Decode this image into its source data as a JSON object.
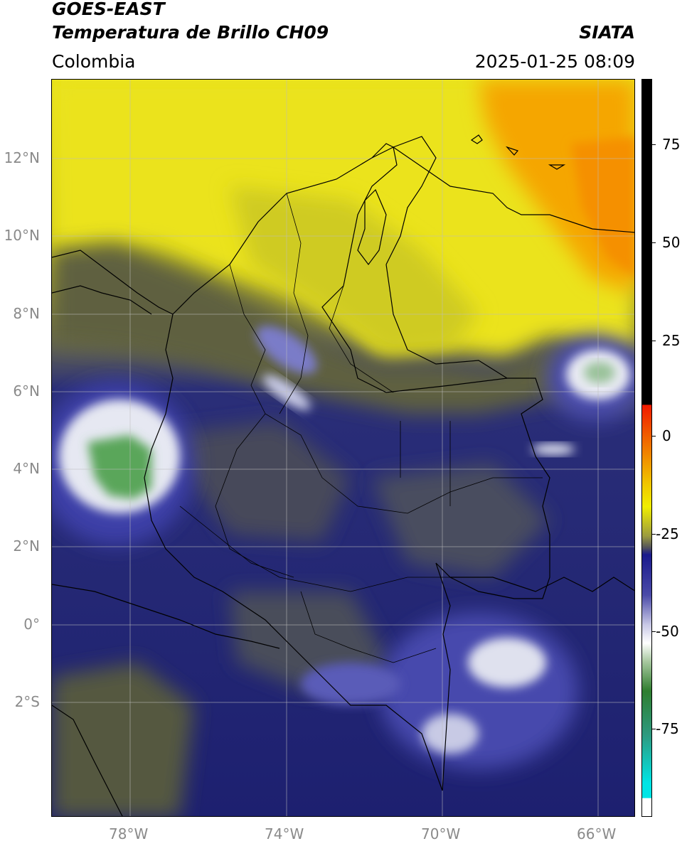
{
  "header": {
    "satellite": "GOES-EAST",
    "product": "Temperatura de Brillo CH09",
    "region": "Colombia",
    "agency": "SIATA",
    "timestamp": "2025-01-25 08:09"
  },
  "map": {
    "lon_ticks": [
      "78°W",
      "74°W",
      "70°W",
      "66°W"
    ],
    "lat_ticks": [
      "12°N",
      "10°N",
      "8°N",
      "6°N",
      "4°N",
      "2°N",
      "0°",
      "2°S"
    ],
    "colors": {
      "warm_yellow": "#e8e21a",
      "orange": "#f5a300",
      "dark_olive": "#555a3e",
      "navy": "#1c1f7a",
      "white_cloud": "#eef0f6",
      "cold_green": "#5aa45a"
    }
  },
  "colorbar": {
    "labels": [
      "75",
      "50",
      "25",
      "0",
      "-25",
      "-50",
      "-75"
    ],
    "colors": {
      "black": "#000000",
      "red": "#f01a00",
      "yellow": "#f0ee00",
      "navy": "#1a1a8c",
      "white": "#ffffff",
      "green": "#2f7d2f",
      "cyan": "#00e5e5"
    }
  }
}
